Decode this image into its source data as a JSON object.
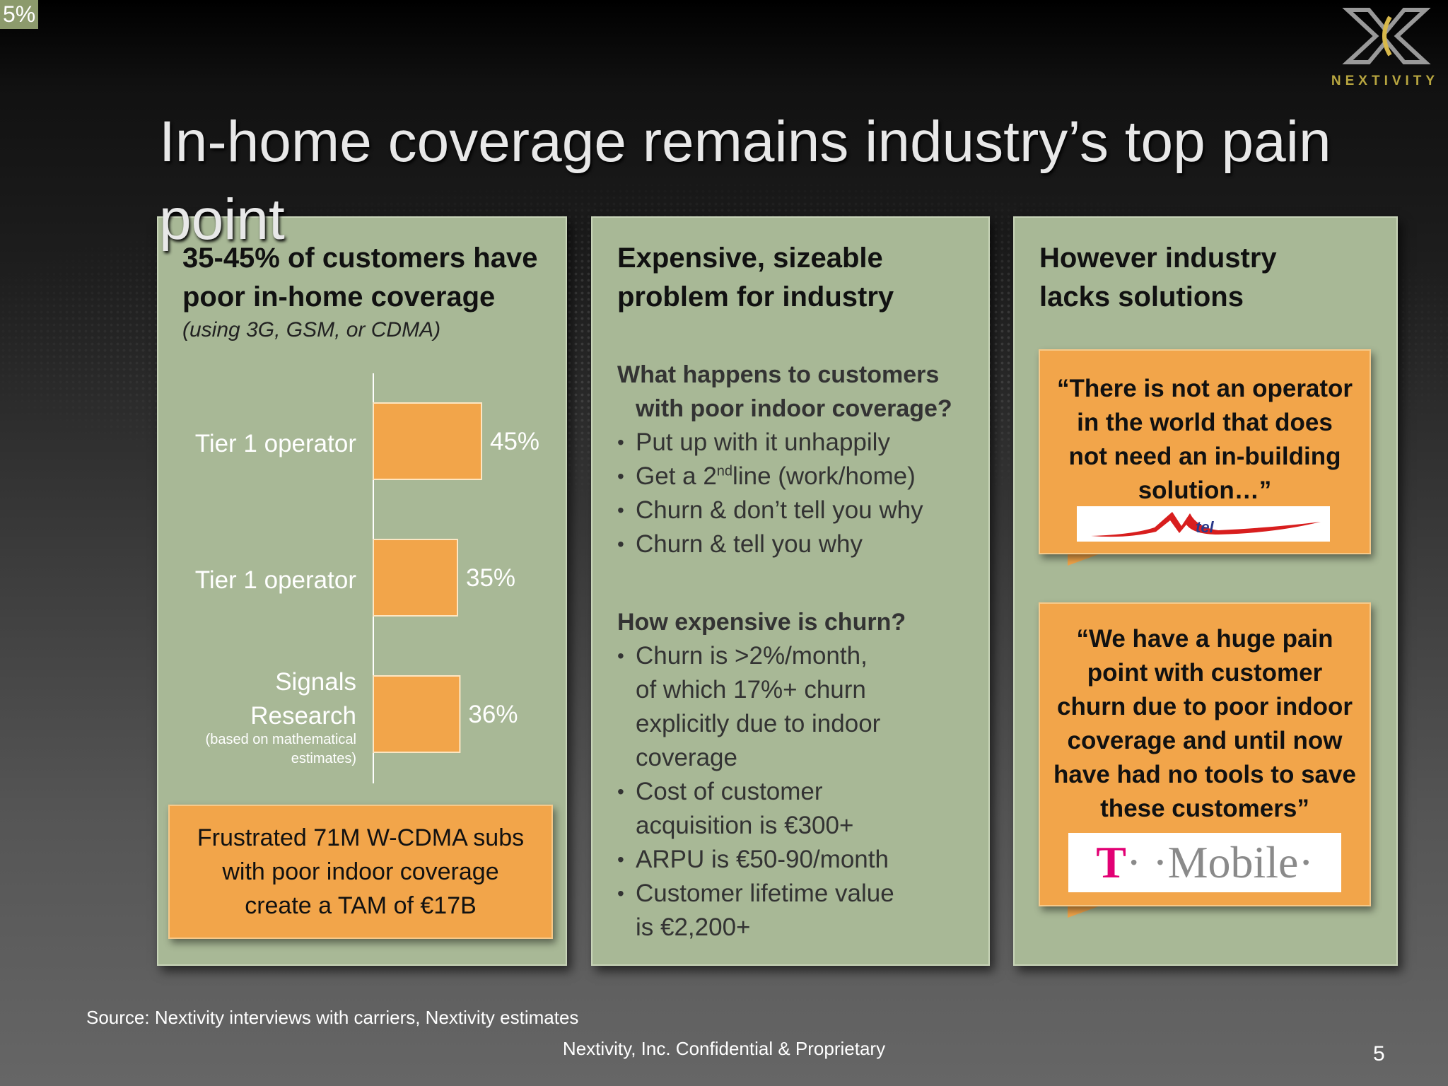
{
  "corner_tag": "5%",
  "logo": {
    "text": "NEXTIVITY"
  },
  "title": "In-home coverage remains industry’s top pain point",
  "left_panel": {
    "heading_line1": "35-45% of customers have",
    "heading_line2": "poor in-home coverage",
    "subheading": "(using 3G, GSM, or CDMA)",
    "tam_box": [
      "Frustrated 71M W-CDMA subs",
      "with poor indoor coverage",
      "create a TAM of €17B"
    ]
  },
  "chart_data": {
    "type": "bar",
    "orientation": "horizontal",
    "categories": [
      "Tier 1 operator",
      "Tier 1 operator",
      "Signals Research"
    ],
    "category_notes": [
      "",
      "",
      "(based on mathematical estimates)"
    ],
    "values": [
      45,
      35,
      36
    ],
    "value_labels": [
      "45%",
      "35%",
      "36%"
    ],
    "unit": "%",
    "bar_color": "#f2a54a",
    "xlim": [
      0,
      100
    ]
  },
  "middle_panel": {
    "heading_line1": "Expensive, sizeable",
    "heading_line2": "problem for industry",
    "q1_line1": "What happens to customers",
    "q1_line2": "with poor indoor coverage?",
    "q1_b1": "Put up with it unhappily",
    "q1_b2_pre": "Get a 2",
    "q1_b2_sup": "nd",
    "q1_b2_post": "line (work/home)",
    "q1_b3": "Churn & don’t tell you why",
    "q1_b4": "Churn & tell you why",
    "q2": "How expensive is churn?",
    "q2_b1": [
      "Churn is >2%/month,",
      "of which 17%+ churn",
      "explicitly due to indoor",
      "coverage"
    ],
    "q2_b2": [
      "Cost of customer",
      "acquisition is €300+"
    ],
    "q2_b3": [
      "ARPU is €50-90/month"
    ],
    "q2_b4": [
      "Customer lifetime value",
      "is €2,200+"
    ]
  },
  "right_panel": {
    "heading_line1": "However industry",
    "heading_line2": "lacks solutions",
    "quote1": [
      "“There is not an operator",
      "in the world that does",
      "not need an in-building",
      "solution…”"
    ],
    "quote1_logo": "tel",
    "quote2": [
      "“We have a huge pain",
      "point with customer",
      "churn due to poor indoor",
      "coverage and until now",
      "have had no tools to save",
      "these customers”"
    ],
    "quote2_logo_t": "T",
    "quote2_logo_rest": "· ·Mobile·"
  },
  "source": "Source: Nextivity interviews with carriers, Nextivity estimates",
  "footer": "Nextivity, Inc. Confidential & Proprietary",
  "page_number": "5"
}
